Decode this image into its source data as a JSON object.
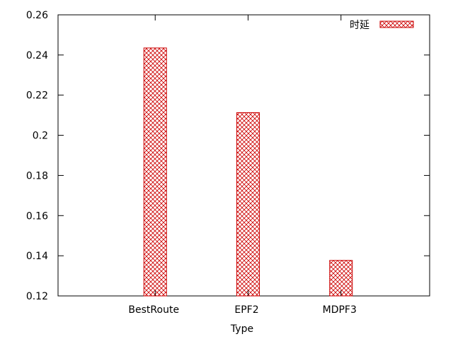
{
  "chart_data": {
    "type": "bar",
    "categories": [
      "BestRoute",
      "EPF2",
      "MDPF3"
    ],
    "series": [
      {
        "name": "时延",
        "values": [
          0.2435,
          0.2113,
          0.1377
        ]
      }
    ],
    "xlabel": "Type",
    "ylabel": "",
    "ylim": [
      0.12,
      0.26
    ],
    "yticks": [
      0.12,
      0.14,
      0.16,
      0.18,
      0.2,
      0.22,
      0.24,
      0.26
    ],
    "ytick_labels": [
      "0.12",
      "0.14",
      "0.16",
      "0.18",
      "0.2",
      "0.22",
      "0.24",
      "0.26"
    ],
    "legend_position": "top-right",
    "grid": false,
    "colors": {
      "bar_stroke": "#cc0000"
    }
  }
}
